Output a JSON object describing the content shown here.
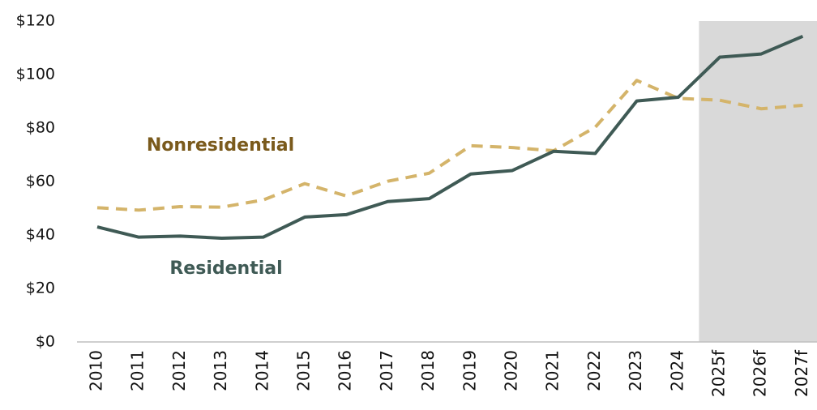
{
  "chart_data": {
    "type": "line",
    "categories": [
      "2010",
      "2011",
      "2012",
      "2013",
      "2014",
      "2015",
      "2016",
      "2017",
      "2018",
      "2019",
      "2020",
      "2021",
      "2022",
      "2023",
      "2024",
      "2025f",
      "2026f",
      "2027f"
    ],
    "series": [
      {
        "name": "Nonresidential",
        "color": "#d4b46a",
        "label_color": "#7a5a1c",
        "dashed": true,
        "values": [
          50.2,
          49.3,
          50.6,
          50.4,
          53.1,
          59.2,
          54.6,
          60.1,
          63.1,
          73.4,
          72.7,
          71.5,
          80.3,
          97.8,
          91.1,
          90.4,
          87.2,
          88.5
        ]
      },
      {
        "name": "Residential",
        "color": "#3f5a55",
        "label_color": "#3f5a55",
        "dashed": false,
        "values": [
          43.0,
          39.2,
          39.6,
          38.8,
          39.2,
          46.7,
          47.6,
          52.5,
          53.6,
          62.8,
          64.1,
          71.3,
          70.5,
          90.1,
          91.5,
          106.5,
          107.7,
          114.3
        ]
      }
    ],
    "ylim": [
      0,
      120
    ],
    "yticks": [
      {
        "value": 0,
        "label": "$0"
      },
      {
        "value": 20,
        "label": "$20"
      },
      {
        "value": 40,
        "label": "$40"
      },
      {
        "value": 60,
        "label": "$60"
      },
      {
        "value": 80,
        "label": "$80"
      },
      {
        "value": 100,
        "label": "$100"
      },
      {
        "value": 120,
        "label": "$120"
      }
    ],
    "grid": false
  }
}
